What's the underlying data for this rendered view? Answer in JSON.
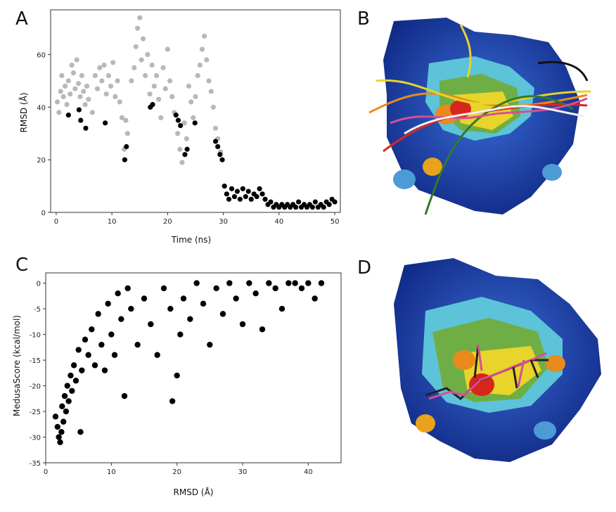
{
  "panels": {
    "a": {
      "letter": "A"
    },
    "b": {
      "letter": "B"
    },
    "c": {
      "letter": "C"
    },
    "d": {
      "letter": "D"
    }
  },
  "colors": {
    "above_threshold": "#b8b8b8",
    "below_threshold": "#000000",
    "surface_blue": "#1d3fa8",
    "surface_green": "#6fae45",
    "surface_yellow": "#e8d42a",
    "surface_red": "#d9261c"
  },
  "chart_data": [
    {
      "type": "scatter",
      "panel": "A",
      "title": "",
      "xlabel": "Time (ns)",
      "ylabel": "RMSD (Å)",
      "xlim": [
        -1,
        51
      ],
      "ylim": [
        0,
        77
      ],
      "xticks": [
        0,
        10,
        20,
        30,
        40,
        50
      ],
      "yticks": [
        0,
        20,
        40,
        60
      ],
      "grid": false,
      "series": [
        {
          "color": "#b8b8b8",
          "points": [
            [
              0.2,
              42
            ],
            [
              0.5,
              38
            ],
            [
              0.8,
              46
            ],
            [
              1.0,
              52
            ],
            [
              1.3,
              44
            ],
            [
              1.6,
              48
            ],
            [
              1.9,
              41
            ],
            [
              2.2,
              50
            ],
            [
              2.5,
              45
            ],
            [
              2.8,
              56
            ],
            [
              3.1,
              53
            ],
            [
              3.4,
              47
            ],
            [
              3.7,
              58
            ],
            [
              4.0,
              49
            ],
            [
              4.3,
              44
            ],
            [
              4.6,
              52
            ],
            [
              4.9,
              46
            ],
            [
              5.2,
              41
            ],
            [
              5.5,
              48
            ],
            [
              5.8,
              43
            ],
            [
              6.5,
              38
            ],
            [
              7.0,
              52
            ],
            [
              7.4,
              47
            ],
            [
              7.8,
              55
            ],
            [
              8.2,
              50
            ],
            [
              8.6,
              56
            ],
            [
              9.0,
              45
            ],
            [
              9.4,
              52
            ],
            [
              9.8,
              48
            ],
            [
              10.2,
              57
            ],
            [
              10.6,
              44
            ],
            [
              11.0,
              50
            ],
            [
              11.4,
              42
            ],
            [
              11.8,
              36
            ],
            [
              12.2,
              24
            ],
            [
              12.5,
              35
            ],
            [
              12.8,
              30
            ],
            [
              13.5,
              50
            ],
            [
              14.0,
              55
            ],
            [
              14.3,
              63
            ],
            [
              14.6,
              70
            ],
            [
              15.0,
              74
            ],
            [
              15.3,
              58
            ],
            [
              15.6,
              66
            ],
            [
              16.0,
              52
            ],
            [
              16.4,
              60
            ],
            [
              16.8,
              45
            ],
            [
              17.2,
              56
            ],
            [
              17.6,
              48
            ],
            [
              18.0,
              52
            ],
            [
              18.4,
              43
            ],
            [
              18.8,
              36
            ],
            [
              19.2,
              55
            ],
            [
              19.6,
              47
            ],
            [
              20.0,
              62
            ],
            [
              20.4,
              50
            ],
            [
              20.8,
              44
            ],
            [
              21.2,
              38
            ],
            [
              21.8,
              30
            ],
            [
              22.2,
              24
            ],
            [
              22.6,
              19
            ],
            [
              23.0,
              34
            ],
            [
              23.4,
              28
            ],
            [
              23.8,
              48
            ],
            [
              24.2,
              42
            ],
            [
              24.6,
              36
            ],
            [
              25.0,
              44
            ],
            [
              25.4,
              52
            ],
            [
              25.8,
              56
            ],
            [
              26.2,
              62
            ],
            [
              26.6,
              67
            ],
            [
              27.0,
              58
            ],
            [
              27.4,
              50
            ],
            [
              27.8,
              46
            ],
            [
              28.2,
              40
            ],
            [
              28.6,
              32
            ],
            [
              29.0,
              28
            ],
            [
              29.5,
              23
            ]
          ]
        },
        {
          "color": "#000000",
          "points": [
            [
              2.2,
              37
            ],
            [
              4.1,
              39
            ],
            [
              4.4,
              35
            ],
            [
              5.3,
              32
            ],
            [
              8.8,
              34
            ],
            [
              12.3,
              20
            ],
            [
              12.6,
              25
            ],
            [
              16.9,
              40
            ],
            [
              17.3,
              41
            ],
            [
              21.5,
              37
            ],
            [
              21.9,
              35
            ],
            [
              22.3,
              33
            ],
            [
              23.1,
              22
            ],
            [
              23.5,
              24
            ],
            [
              24.9,
              34
            ],
            [
              28.6,
              27
            ],
            [
              29.0,
              25
            ],
            [
              29.4,
              22
            ],
            [
              29.8,
              20
            ],
            [
              30.2,
              10
            ],
            [
              30.6,
              7
            ],
            [
              31.0,
              5
            ],
            [
              31.5,
              9
            ],
            [
              32.0,
              6
            ],
            [
              32.5,
              8
            ],
            [
              33.0,
              5
            ],
            [
              33.5,
              9
            ],
            [
              34.0,
              6
            ],
            [
              34.5,
              8
            ],
            [
              35.0,
              5
            ],
            [
              35.5,
              7
            ],
            [
              36.0,
              6
            ],
            [
              36.5,
              9
            ],
            [
              37.0,
              7
            ],
            [
              37.5,
              5
            ],
            [
              38.0,
              3
            ],
            [
              38.5,
              4
            ],
            [
              39.0,
              2
            ],
            [
              39.5,
              3
            ],
            [
              40.0,
              2
            ],
            [
              40.5,
              3
            ],
            [
              41.0,
              2
            ],
            [
              41.5,
              3
            ],
            [
              42.0,
              2
            ],
            [
              42.5,
              3
            ],
            [
              43.0,
              2
            ],
            [
              43.5,
              4
            ],
            [
              44.0,
              2
            ],
            [
              44.5,
              3
            ],
            [
              45.0,
              2
            ],
            [
              45.5,
              3
            ],
            [
              46.0,
              2
            ],
            [
              46.5,
              4
            ],
            [
              47.0,
              2
            ],
            [
              47.5,
              3
            ],
            [
              48.0,
              2
            ],
            [
              48.5,
              4
            ],
            [
              49.0,
              3
            ],
            [
              49.5,
              5
            ],
            [
              50.0,
              4
            ]
          ]
        }
      ]
    },
    {
      "type": "scatter",
      "panel": "C",
      "title": "",
      "xlabel": "RMSD (Å)",
      "ylabel": "MedusaScore (kcal/mol)",
      "xlim": [
        0,
        45
      ],
      "ylim": [
        -35,
        2
      ],
      "xticks": [
        0,
        10,
        20,
        30,
        40
      ],
      "yticks": [
        0,
        -5,
        -10,
        -15,
        -20,
        -25,
        -30,
        -35
      ],
      "grid": false,
      "series": [
        {
          "color": "#000000",
          "points": [
            [
              1.5,
              -26
            ],
            [
              1.8,
              -28
            ],
            [
              2.0,
              -30
            ],
            [
              2.2,
              -31
            ],
            [
              2.4,
              -29
            ],
            [
              2.5,
              -24
            ],
            [
              2.7,
              -27
            ],
            [
              2.9,
              -22
            ],
            [
              3.1,
              -25
            ],
            [
              3.3,
              -20
            ],
            [
              3.5,
              -23
            ],
            [
              3.8,
              -18
            ],
            [
              4.0,
              -21
            ],
            [
              4.3,
              -16
            ],
            [
              4.6,
              -19
            ],
            [
              5.0,
              -13
            ],
            [
              5.3,
              -29
            ],
            [
              5.5,
              -17
            ],
            [
              6.0,
              -11
            ],
            [
              6.5,
              -14
            ],
            [
              7.0,
              -9
            ],
            [
              7.5,
              -16
            ],
            [
              8.0,
              -6
            ],
            [
              8.5,
              -12
            ],
            [
              9.0,
              -17
            ],
            [
              9.5,
              -4
            ],
            [
              10.0,
              -10
            ],
            [
              10.5,
              -14
            ],
            [
              11.0,
              -2
            ],
            [
              11.5,
              -7
            ],
            [
              12.0,
              -22
            ],
            [
              12.5,
              -1
            ],
            [
              13.0,
              -5
            ],
            [
              14.0,
              -12
            ],
            [
              15.0,
              -3
            ],
            [
              16.0,
              -8
            ],
            [
              17.0,
              -14
            ],
            [
              18.0,
              -1
            ],
            [
              19.0,
              -5
            ],
            [
              19.3,
              -23
            ],
            [
              20.0,
              -18
            ],
            [
              20.5,
              -10
            ],
            [
              21.0,
              -3
            ],
            [
              22.0,
              -7
            ],
            [
              23.0,
              0
            ],
            [
              24.0,
              -4
            ],
            [
              25.0,
              -12
            ],
            [
              26.0,
              -1
            ],
            [
              27.0,
              -6
            ],
            [
              28.0,
              0
            ],
            [
              29.0,
              -3
            ],
            [
              30.0,
              -8
            ],
            [
              31.0,
              0
            ],
            [
              32.0,
              -2
            ],
            [
              33.0,
              -9
            ],
            [
              34.0,
              0
            ],
            [
              35.0,
              -1
            ],
            [
              36.0,
              -5
            ],
            [
              37.0,
              0
            ],
            [
              38.0,
              0
            ],
            [
              39.0,
              -1
            ],
            [
              40.0,
              0
            ],
            [
              41.0,
              -3
            ],
            [
              42.0,
              0
            ]
          ]
        }
      ]
    }
  ]
}
